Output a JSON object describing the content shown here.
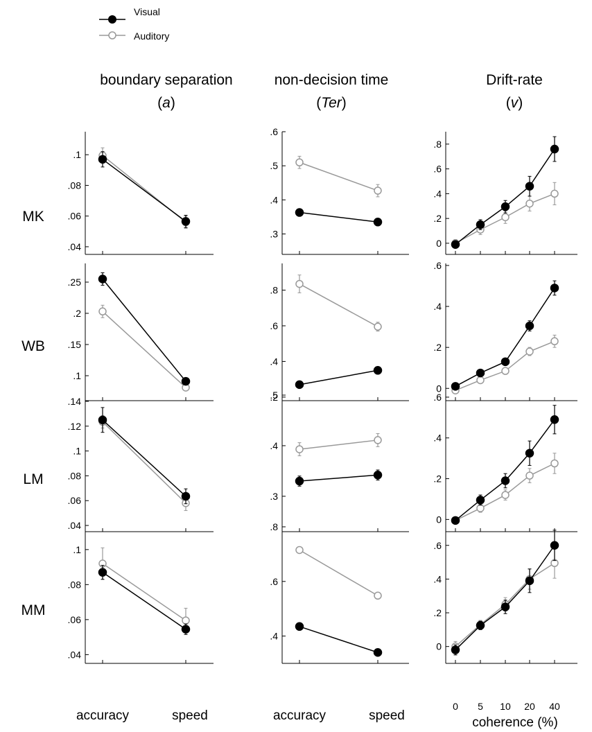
{
  "colors": {
    "visual": "#000000",
    "auditory": "#999999"
  },
  "legend": [
    {
      "name": "Visual",
      "color": "#000000",
      "marker": "filled-circle"
    },
    {
      "name": "Auditory",
      "color": "#999999",
      "marker": "open-circle"
    }
  ],
  "columns": [
    {
      "title_line1": "boundary separation",
      "title_line2_pre": "(",
      "title_line2_em": "a",
      "title_line2_post": ")"
    },
    {
      "title_line1": "non-decision time",
      "title_line2_pre": "(",
      "title_line2_em": "Ter",
      "title_line2_post": ")"
    },
    {
      "title_line1": "Drift-rate",
      "title_line2_pre": "(",
      "title_line2_em": "v",
      "title_line2_post": ")"
    }
  ],
  "rows": [
    "MK",
    "WB",
    "LM",
    "MM"
  ],
  "x_labels_condition": [
    "accuracy",
    "speed"
  ],
  "x_labels_coherence": [
    "0",
    "5",
    "10",
    "20",
    "40"
  ],
  "xlabel_coherence": "coherence (%)",
  "chart_data": [
    {
      "type": "line",
      "subject": "MK",
      "parameter": "boundary separation (a)",
      "categories": [
        "accuracy",
        "speed"
      ],
      "ylim": [
        0.035,
        0.115
      ],
      "yticks": [
        0.04,
        0.06,
        0.08,
        0.1
      ],
      "ytick_labels": [
        ".04",
        ".06",
        ".08",
        ".1"
      ],
      "series": [
        {
          "name": "Visual",
          "values": [
            0.097,
            0.0565
          ],
          "errors": [
            0.005,
            0.004
          ]
        },
        {
          "name": "Auditory",
          "values": [
            0.0995,
            0.056
          ],
          "errors": [
            0.005,
            0.004
          ]
        }
      ]
    },
    {
      "type": "line",
      "subject": "MK",
      "parameter": "non-decision time (Ter)",
      "categories": [
        "accuracy",
        "speed"
      ],
      "ylim": [
        0.24,
        0.6
      ],
      "yticks": [
        0.3,
        0.4,
        0.5,
        0.6
      ],
      "ytick_labels": [
        ".3",
        ".4",
        ".5",
        ".6"
      ],
      "series": [
        {
          "name": "Visual",
          "values": [
            0.363,
            0.335
          ],
          "errors": [
            0.008,
            0.008
          ]
        },
        {
          "name": "Auditory",
          "values": [
            0.51,
            0.427
          ],
          "errors": [
            0.018,
            0.018
          ]
        }
      ]
    },
    {
      "type": "line",
      "subject": "MK",
      "parameter": "Drift-rate (v)",
      "categories": [
        "0",
        "5",
        "10",
        "20",
        "40"
      ],
      "ylim": [
        -0.09,
        0.9
      ],
      "yticks": [
        0,
        0.2,
        0.4,
        0.6,
        0.8
      ],
      "ytick_labels": [
        "0",
        ".2",
        ".4",
        ".6",
        ".8"
      ],
      "series": [
        {
          "name": "Visual",
          "values": [
            -0.01,
            0.15,
            0.295,
            0.46,
            0.76
          ],
          "errors": [
            0.03,
            0.04,
            0.05,
            0.08,
            0.1
          ]
        },
        {
          "name": "Auditory",
          "values": [
            0.0,
            0.11,
            0.21,
            0.32,
            0.4
          ],
          "errors": [
            0.03,
            0.04,
            0.05,
            0.06,
            0.09
          ]
        }
      ]
    },
    {
      "type": "line",
      "subject": "WB",
      "parameter": "boundary separation (a)",
      "categories": [
        "accuracy",
        "speed"
      ],
      "ylim": [
        0.06,
        0.28
      ],
      "yticks": [
        0.1,
        0.15,
        0.2,
        0.25
      ],
      "ytick_labels": [
        ".1",
        ".15",
        ".2",
        ".25"
      ],
      "series": [
        {
          "name": "Visual",
          "values": [
            0.255,
            0.091
          ],
          "errors": [
            0.01,
            0.004
          ]
        },
        {
          "name": "Auditory",
          "values": [
            0.203,
            0.081
          ],
          "errors": [
            0.01,
            0.004
          ]
        }
      ]
    },
    {
      "type": "line",
      "subject": "WB",
      "parameter": "non-decision time (Ter)",
      "categories": [
        "accuracy",
        "speed"
      ],
      "ylim": [
        0.18,
        0.95
      ],
      "yticks": [
        0.2,
        0.4,
        0.6,
        0.8
      ],
      "ytick_labels": [
        ".2",
        ".4",
        ".6",
        ".8"
      ],
      "series": [
        {
          "name": "Visual",
          "values": [
            0.27,
            0.35
          ],
          "errors": [
            0.01,
            0.01
          ]
        },
        {
          "name": "Auditory",
          "values": [
            0.835,
            0.595
          ],
          "errors": [
            0.05,
            0.025
          ]
        }
      ]
    },
    {
      "type": "line",
      "subject": "WB",
      "parameter": "Drift-rate (v)",
      "categories": [
        "0",
        "5",
        "10",
        "20",
        "40"
      ],
      "ylim": [
        -0.06,
        0.61
      ],
      "yticks": [
        0,
        0.2,
        0.4,
        0.6
      ],
      "ytick_labels": [
        "0",
        ".2",
        ".4",
        ".6"
      ],
      "series": [
        {
          "name": "Visual",
          "values": [
            0.01,
            0.075,
            0.13,
            0.305,
            0.49
          ],
          "errors": [
            0.01,
            0.012,
            0.015,
            0.025,
            0.035
          ]
        },
        {
          "name": "Auditory",
          "values": [
            -0.01,
            0.04,
            0.085,
            0.18,
            0.23
          ],
          "errors": [
            0.01,
            0.012,
            0.015,
            0.02,
            0.03
          ]
        }
      ]
    },
    {
      "type": "line",
      "subject": "LM",
      "parameter": "boundary separation (a)",
      "categories": [
        "accuracy",
        "speed"
      ],
      "ylim": [
        0.035,
        0.145
      ],
      "yticks": [
        0.04,
        0.06,
        0.08,
        0.1,
        0.12,
        0.14
      ],
      "ytick_labels": [
        ".04",
        ".06",
        ".08",
        ".1",
        ".12",
        ".14"
      ],
      "series": [
        {
          "name": "Visual",
          "values": [
            0.125,
            0.0635
          ],
          "errors": [
            0.01,
            0.006
          ]
        },
        {
          "name": "Auditory",
          "values": [
            0.1235,
            0.058
          ],
          "errors": [
            0.005,
            0.006
          ]
        }
      ]
    },
    {
      "type": "line",
      "subject": "LM",
      "parameter": "non-decision time (Ter)",
      "categories": [
        "accuracy",
        "speed"
      ],
      "ylim": [
        0.23,
        0.5
      ],
      "yticks": [
        0.3,
        0.4,
        0.5
      ],
      "ytick_labels": [
        ".3",
        ".4",
        ".5"
      ],
      "series": [
        {
          "name": "Visual",
          "values": [
            0.33,
            0.342
          ],
          "errors": [
            0.01,
            0.01
          ]
        },
        {
          "name": "Auditory",
          "values": [
            0.393,
            0.411
          ],
          "errors": [
            0.013,
            0.013
          ]
        }
      ]
    },
    {
      "type": "line",
      "subject": "LM",
      "parameter": "Drift-rate (v)",
      "categories": [
        "0",
        "5",
        "10",
        "20",
        "40"
      ],
      "ylim": [
        -0.06,
        0.61
      ],
      "yticks": [
        0,
        0.2,
        0.4,
        0.6
      ],
      "ytick_labels": [
        "0",
        ".2",
        ".4",
        ".6"
      ],
      "series": [
        {
          "name": "Visual",
          "values": [
            -0.005,
            0.095,
            0.19,
            0.325,
            0.49
          ],
          "errors": [
            0.01,
            0.025,
            0.035,
            0.06,
            0.07
          ]
        },
        {
          "name": "Auditory",
          "values": [
            -0.005,
            0.055,
            0.12,
            0.215,
            0.275
          ],
          "errors": [
            0.01,
            0.02,
            0.025,
            0.035,
            0.05
          ]
        }
      ]
    },
    {
      "type": "line",
      "subject": "MM",
      "parameter": "boundary separation (a)",
      "categories": [
        "accuracy",
        "speed"
      ],
      "ylim": [
        0.035,
        0.113
      ],
      "yticks": [
        0.04,
        0.06,
        0.08,
        0.1
      ],
      "ytick_labels": [
        ".04",
        ".06",
        ".08",
        ".1"
      ],
      "series": [
        {
          "name": "Visual",
          "values": [
            0.087,
            0.0545
          ],
          "errors": [
            0.004,
            0.003
          ]
        },
        {
          "name": "Auditory",
          "values": [
            0.092,
            0.0595
          ],
          "errors": [
            0.009,
            0.007
          ]
        }
      ]
    },
    {
      "type": "line",
      "subject": "MM",
      "parameter": "non-decision time (Ter)",
      "categories": [
        "accuracy",
        "speed"
      ],
      "ylim": [
        0.3,
        0.8
      ],
      "yticks": [
        0.4,
        0.6,
        0.8
      ],
      "ytick_labels": [
        ".4",
        ".6",
        ".8"
      ],
      "series": [
        {
          "name": "Visual",
          "values": [
            0.435,
            0.34
          ],
          "errors": [
            0.005,
            0.005
          ]
        },
        {
          "name": "Auditory",
          "values": [
            0.715,
            0.548
          ],
          "errors": [
            0.007,
            0.007
          ]
        }
      ]
    },
    {
      "type": "line",
      "subject": "MM",
      "parameter": "Drift-rate (v)",
      "categories": [
        "0",
        "5",
        "10",
        "20",
        "40"
      ],
      "ylim": [
        -0.1,
        0.71
      ],
      "yticks": [
        0,
        0.2,
        0.4,
        0.6
      ],
      "ytick_labels": [
        "0",
        ".2",
        ".4",
        ".6"
      ],
      "series": [
        {
          "name": "Visual",
          "values": [
            -0.02,
            0.125,
            0.235,
            0.39,
            0.6
          ],
          "errors": [
            0.03,
            0.025,
            0.04,
            0.07,
            0.09
          ]
        },
        {
          "name": "Auditory",
          "values": [
            0.0,
            0.13,
            0.25,
            0.4,
            0.495
          ],
          "errors": [
            0.03,
            0.025,
            0.04,
            0.06,
            0.09
          ]
        }
      ]
    }
  ]
}
